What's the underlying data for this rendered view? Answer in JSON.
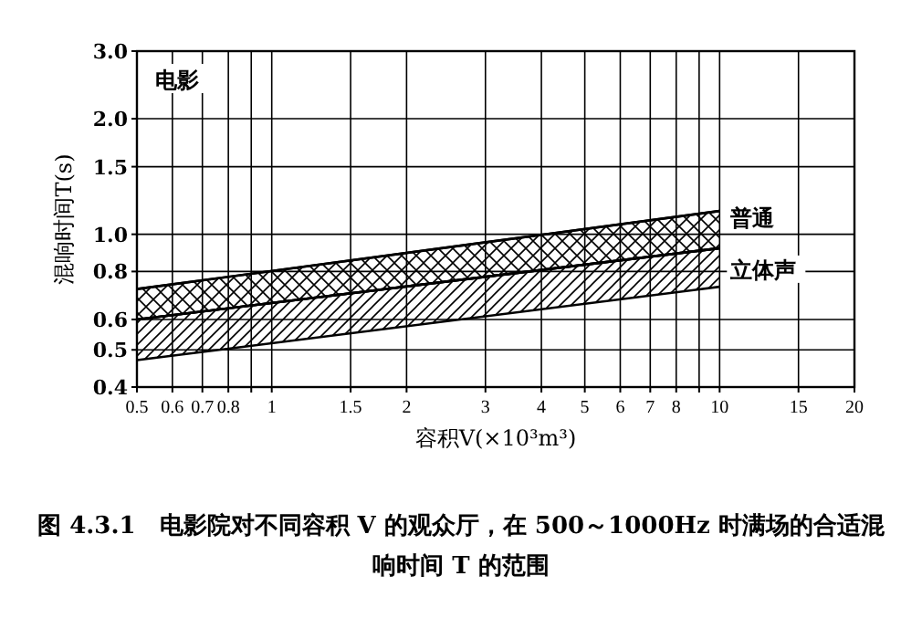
{
  "chart_data": {
    "type": "line",
    "title": "图 4.3.1　电影院对不同容积 V 的观众厅，在 500～1000Hz 时满场的合适混响时间 T 的范围",
    "xlabel": "容积V(×10³m³)",
    "ylabel": "混响时间T(s)",
    "x": [
      0.5,
      10
    ],
    "series": [
      {
        "name": "普通",
        "color": "#000000",
        "values": [
          0.72,
          1.15
        ],
        "lower": [
          0.6,
          0.92
        ],
        "upper": [
          0.72,
          1.15
        ]
      },
      {
        "name": "立体声",
        "color": "#000000",
        "values": [
          0.6,
          0.92
        ],
        "lower": [
          0.47,
          0.73
        ],
        "upper": [
          0.6,
          0.92
        ]
      }
    ],
    "annotations": [
      "电影"
    ],
    "log": "xy",
    "grid": true,
    "xlim": [
      0.5,
      20
    ],
    "ylim": [
      0.4,
      3.0
    ],
    "xticks": [
      0.5,
      0.6,
      0.7,
      0.8,
      {
        "value": 0.9,
        "label": null
      },
      1,
      1.5,
      2,
      3,
      4,
      5,
      6,
      7,
      8,
      {
        "value": 9,
        "label": null
      },
      10,
      15,
      20
    ],
    "yticks": [
      0.4,
      0.5,
      0.6,
      0.8,
      {
        "value": 1,
        "label": "1.0"
      },
      1.5,
      {
        "value": 2,
        "label": "2.0"
      },
      {
        "value": 3,
        "label": "3.0"
      }
    ]
  }
}
